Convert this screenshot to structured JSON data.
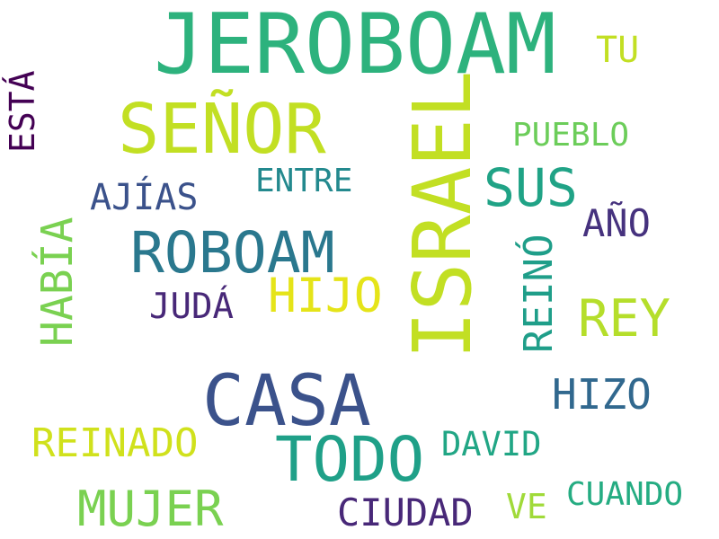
{
  "cloud": {
    "words": {
      "jeroboam": "JEROBOAM",
      "tu": "TU",
      "senor": "SEÑOR",
      "pueblo": "PUEBLO",
      "entre": "ENTRE",
      "sus": "SUS",
      "ajias": "AJÍAS",
      "ano": "AÑO",
      "roboam": "ROBOAM",
      "hijo": "HIJO",
      "juda": "JUDÁ",
      "rey": "REY",
      "casa": "CASA",
      "hizo": "HIZO",
      "todo": "TODO",
      "reinado": "REINADO",
      "david": "DAVID",
      "mujer": "MUJER",
      "ciudad": "CIUDAD",
      "ve": "VE",
      "cuando": "CUANDO",
      "israel": "ISRAEL",
      "reino": "REINÓ",
      "habia": "HABÍA",
      "esta": "ESTÁ"
    },
    "colors": {
      "dark_purple": "#440154",
      "purple": "#482878",
      "indigo": "#3b528b",
      "blue": "#31688e",
      "teal": "#23898e",
      "green_teal": "#1fa088",
      "green": "#2db27d",
      "light_green": "#7ad151",
      "yellow_green": "#c2df23",
      "yellow": "#e5e419"
    }
  }
}
